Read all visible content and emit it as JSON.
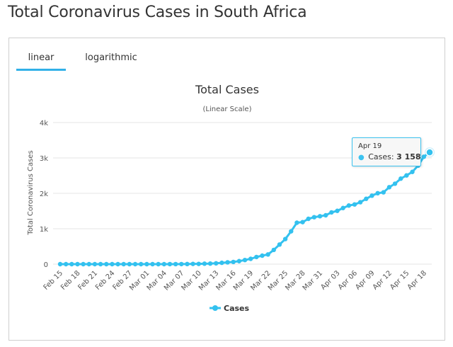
{
  "page": {
    "title": "Total Coronavirus Cases in South Africa"
  },
  "tabs": [
    {
      "label": "linear",
      "active": true
    },
    {
      "label": "logarithmic",
      "active": false
    }
  ],
  "colors": {
    "series": "#33c1ef",
    "accent": "#32b1e8",
    "grid": "#e6e6e6"
  },
  "tooltip": {
    "date": "Apr 19",
    "series_label": "Cases:",
    "value_text": "3 158"
  },
  "chart_data": {
    "type": "line",
    "title": "Total Cases",
    "subtitle": "(Linear Scale)",
    "xlabel": "",
    "ylabel": "Total Coronavirus Cases",
    "ylim": [
      0,
      4000
    ],
    "yticks": [
      {
        "value": 0,
        "label": "0"
      },
      {
        "value": 1000,
        "label": "1k"
      },
      {
        "value": 2000,
        "label": "2k"
      },
      {
        "value": 3000,
        "label": "3k"
      },
      {
        "value": 4000,
        "label": "4k"
      }
    ],
    "xtick_labels": [
      "Feb 15",
      "Feb 18",
      "Feb 21",
      "Feb 24",
      "Feb 27",
      "Mar 01",
      "Mar 04",
      "Mar 07",
      "Mar 10",
      "Mar 13",
      "Mar 16",
      "Mar 19",
      "Mar 22",
      "Mar 25",
      "Mar 28",
      "Mar 31",
      "Apr 03",
      "Apr 06",
      "Apr 09",
      "Apr 12",
      "Apr 15",
      "Apr 18"
    ],
    "grid": true,
    "legend": "bottom-center",
    "categories": [
      "Feb 15",
      "Feb 16",
      "Feb 17",
      "Feb 18",
      "Feb 19",
      "Feb 20",
      "Feb 21",
      "Feb 22",
      "Feb 23",
      "Feb 24",
      "Feb 25",
      "Feb 26",
      "Feb 27",
      "Feb 28",
      "Feb 29",
      "Mar 01",
      "Mar 02",
      "Mar 03",
      "Mar 04",
      "Mar 05",
      "Mar 06",
      "Mar 07",
      "Mar 08",
      "Mar 09",
      "Mar 10",
      "Mar 11",
      "Mar 12",
      "Mar 13",
      "Mar 14",
      "Mar 15",
      "Mar 16",
      "Mar 17",
      "Mar 18",
      "Mar 19",
      "Mar 20",
      "Mar 21",
      "Mar 22",
      "Mar 23",
      "Mar 24",
      "Mar 25",
      "Mar 26",
      "Mar 27",
      "Mar 28",
      "Mar 29",
      "Mar 30",
      "Mar 31",
      "Apr 01",
      "Apr 02",
      "Apr 03",
      "Apr 04",
      "Apr 05",
      "Apr 06",
      "Apr 07",
      "Apr 08",
      "Apr 09",
      "Apr 10",
      "Apr 11",
      "Apr 12",
      "Apr 13",
      "Apr 14",
      "Apr 15",
      "Apr 16",
      "Apr 17",
      "Apr 18",
      "Apr 19"
    ],
    "series": [
      {
        "name": "Cases",
        "values": [
          0,
          0,
          0,
          0,
          0,
          0,
          0,
          0,
          0,
          0,
          0,
          0,
          0,
          0,
          0,
          0,
          0,
          0,
          0,
          1,
          1,
          2,
          3,
          7,
          7,
          13,
          16,
          24,
          38,
          51,
          62,
          85,
          116,
          150,
          202,
          240,
          274,
          402,
          554,
          709,
          927,
          1170,
          1187,
          1280,
          1326,
          1353,
          1380,
          1462,
          1505,
          1585,
          1655,
          1686,
          1749,
          1845,
          1934,
          2003,
          2028,
          2173,
          2272,
          2415,
          2506,
          2605,
          2783,
          3034,
          3158
        ]
      }
    ]
  }
}
